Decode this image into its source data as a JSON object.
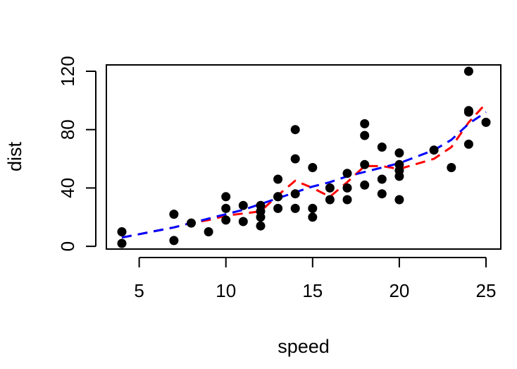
{
  "chart_data": {
    "type": "scatter",
    "xlabel": "speed",
    "ylabel": "dist",
    "xlim": [
      4,
      25
    ],
    "ylim": [
      2,
      120
    ],
    "x_ticks": [
      5,
      10,
      15,
      20,
      25
    ],
    "y_ticks": [
      0,
      40,
      80,
      120
    ],
    "points": [
      [
        4,
        2
      ],
      [
        4,
        10
      ],
      [
        7,
        4
      ],
      [
        7,
        22
      ],
      [
        8,
        16
      ],
      [
        9,
        10
      ],
      [
        10,
        18
      ],
      [
        10,
        26
      ],
      [
        10,
        34
      ],
      [
        11,
        17
      ],
      [
        11,
        28
      ],
      [
        12,
        14
      ],
      [
        12,
        20
      ],
      [
        12,
        24
      ],
      [
        12,
        28
      ],
      [
        13,
        26
      ],
      [
        13,
        34
      ],
      [
        13,
        34
      ],
      [
        13,
        46
      ],
      [
        14,
        26
      ],
      [
        14,
        36
      ],
      [
        14,
        60
      ],
      [
        14,
        80
      ],
      [
        15,
        20
      ],
      [
        15,
        26
      ],
      [
        15,
        54
      ],
      [
        16,
        32
      ],
      [
        16,
        40
      ],
      [
        17,
        32
      ],
      [
        17,
        40
      ],
      [
        17,
        50
      ],
      [
        18,
        42
      ],
      [
        18,
        56
      ],
      [
        18,
        76
      ],
      [
        18,
        84
      ],
      [
        19,
        36
      ],
      [
        19,
        46
      ],
      [
        19,
        68
      ],
      [
        20,
        32
      ],
      [
        20,
        48
      ],
      [
        20,
        52
      ],
      [
        20,
        56
      ],
      [
        20,
        64
      ],
      [
        22,
        66
      ],
      [
        23,
        54
      ],
      [
        24,
        70
      ],
      [
        24,
        92
      ],
      [
        24,
        93
      ],
      [
        24,
        120
      ],
      [
        25,
        85
      ]
    ],
    "series": [
      {
        "color": "#ff0000",
        "style": "dashed",
        "x": [
          4,
          7,
          8,
          9,
          10,
          11,
          12,
          13,
          14,
          15,
          16,
          17,
          18,
          19,
          20,
          22,
          23,
          24,
          25
        ],
        "y": [
          6,
          13,
          16,
          18,
          21,
          22.5,
          24,
          35,
          45,
          40,
          34,
          44,
          55,
          55,
          53,
          60,
          68,
          85,
          98
        ]
      },
      {
        "color": "#0000ff",
        "style": "dashed",
        "x": [
          4,
          7,
          8,
          9,
          10,
          11,
          12,
          13,
          14,
          15,
          16,
          17,
          18,
          19,
          20,
          22,
          23,
          24,
          25
        ],
        "y": [
          6,
          13,
          16,
          19,
          22,
          25,
          29,
          33,
          37,
          41,
          44,
          48,
          51,
          54,
          57,
          66,
          73,
          84,
          92
        ]
      }
    ]
  }
}
